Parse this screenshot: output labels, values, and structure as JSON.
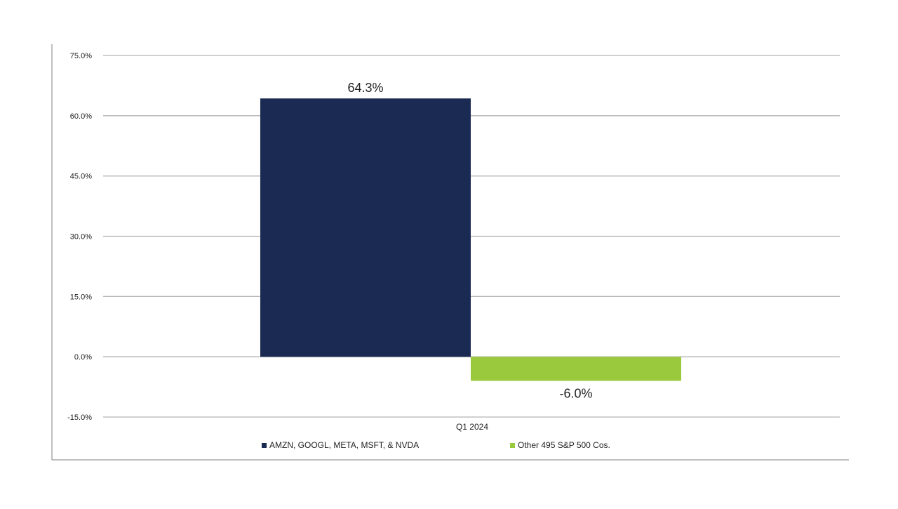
{
  "chart_data": {
    "type": "bar",
    "title": "",
    "xlabel": "",
    "ylabel": "",
    "categories": [
      "Q1 2024"
    ],
    "series": [
      {
        "name": "AMZN, GOOGL, META, MSFT, & NVDA",
        "values": [
          64.3
        ],
        "label": "64.3%",
        "color": "#1b2a52"
      },
      {
        "name": "Other 495 S&P 500 Cos.",
        "values": [
          -6.0
        ],
        "label": "-6.0%",
        "color": "#9bc93d"
      }
    ],
    "ylim": [
      -15.0,
      75.0
    ],
    "yticks": [
      -15.0,
      0.0,
      15.0,
      30.0,
      45.0,
      60.0,
      75.0
    ],
    "ytick_labels": [
      "-15.0%",
      "0.0%",
      "15.0%",
      "30.0%",
      "45.0%",
      "60.0%",
      "75.0%"
    ],
    "grid": true,
    "legend_position": "bottom"
  }
}
